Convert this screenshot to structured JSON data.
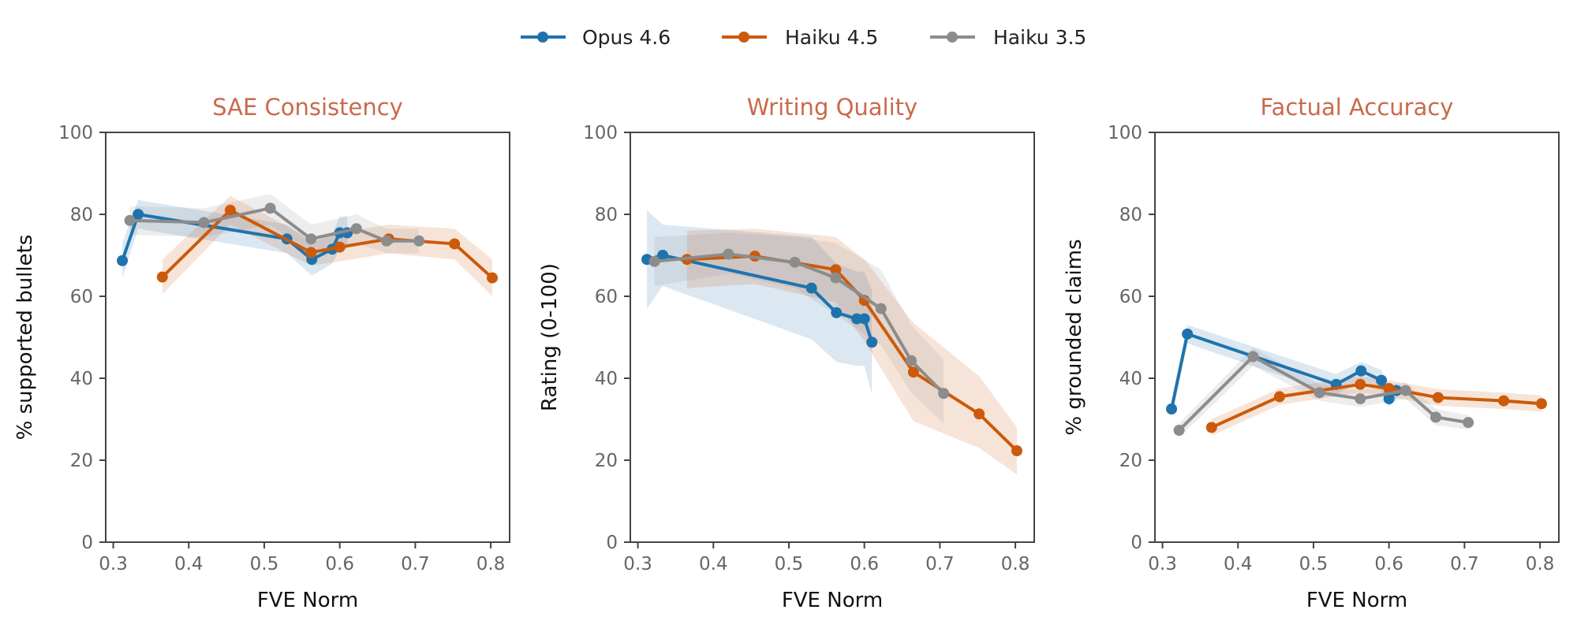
{
  "legend": {
    "items": [
      {
        "label": "Opus 4.6",
        "series": "opus46"
      },
      {
        "label": "Haiku 4.5",
        "series": "haiku45"
      },
      {
        "label": "Haiku 3.5",
        "series": "haiku35"
      }
    ]
  },
  "colors": {
    "opus46": "#1f73ad",
    "haiku45": "#cc5a0a",
    "haiku35": "#8c8c8c",
    "title": "#c96a4c",
    "axis": "#444444"
  },
  "chart_data": [
    {
      "type": "line",
      "title": "SAE Consistency",
      "xlabel": "FVE Norm",
      "ylabel": "% supported bullets",
      "xlim": [
        0.29,
        0.825
      ],
      "ylim": [
        0,
        100
      ],
      "xticks": [
        "0.3",
        "0.4",
        "0.5",
        "0.6",
        "0.7",
        "0.8"
      ],
      "yticks": [
        "0",
        "20",
        "40",
        "60",
        "80",
        "100"
      ],
      "grid": false,
      "series": [
        {
          "name": "Opus 4.6",
          "key": "opus46",
          "x": [
            0.312,
            0.333,
            0.53,
            0.563,
            0.59,
            0.6,
            0.61
          ],
          "y": [
            68.7,
            80.0,
            74.0,
            69.0,
            71.5,
            75.5,
            75.5
          ],
          "lower": [
            64.5,
            76.5,
            70.5,
            65.0,
            68.0,
            71.5,
            71.5
          ],
          "upper": [
            73.0,
            83.5,
            77.5,
            73.0,
            75.0,
            79.5,
            79.5
          ]
        },
        {
          "name": "Haiku 4.5",
          "key": "haiku45",
          "x": [
            0.365,
            0.455,
            0.562,
            0.6,
            0.665,
            0.752,
            0.802
          ],
          "y": [
            64.7,
            81.0,
            70.7,
            72.0,
            74.0,
            72.8,
            64.5
          ],
          "lower": [
            60.5,
            77.5,
            67.5,
            68.5,
            70.5,
            69.0,
            60.0
          ],
          "upper": [
            69.0,
            84.5,
            74.0,
            75.5,
            77.5,
            76.5,
            69.0
          ]
        },
        {
          "name": "Haiku 3.5",
          "key": "haiku35",
          "x": [
            0.322,
            0.42,
            0.508,
            0.562,
            0.622,
            0.662,
            0.705
          ],
          "y": [
            78.5,
            78.0,
            81.5,
            74.0,
            76.5,
            73.5,
            73.5
          ],
          "lower": [
            75.0,
            74.5,
            77.5,
            70.5,
            73.0,
            70.5,
            70.5
          ],
          "upper": [
            82.0,
            81.5,
            85.0,
            77.5,
            80.0,
            76.5,
            76.5
          ]
        }
      ]
    },
    {
      "type": "line",
      "title": "Writing Quality",
      "xlabel": "FVE Norm",
      "ylabel": "Rating (0-100)",
      "xlim": [
        0.29,
        0.825
      ],
      "ylim": [
        0,
        100
      ],
      "xticks": [
        "0.3",
        "0.4",
        "0.5",
        "0.6",
        "0.7",
        "0.8"
      ],
      "yticks": [
        "0",
        "20",
        "40",
        "60",
        "80",
        "100"
      ],
      "grid": false,
      "series": [
        {
          "name": "Opus 4.6",
          "key": "opus46",
          "x": [
            0.312,
            0.333,
            0.53,
            0.563,
            0.59,
            0.6,
            0.61
          ],
          "y": [
            69.0,
            70.0,
            62.0,
            56.0,
            54.5,
            54.5,
            48.8
          ],
          "lower": [
            57.0,
            62.5,
            49.5,
            44.0,
            43.0,
            43.0,
            36.0
          ],
          "upper": [
            81.0,
            77.5,
            74.5,
            68.0,
            66.0,
            66.0,
            61.5
          ]
        },
        {
          "name": "Haiku 4.5",
          "key": "haiku45",
          "x": [
            0.365,
            0.455,
            0.562,
            0.6,
            0.665,
            0.752,
            0.802
          ],
          "y": [
            69.0,
            69.8,
            66.5,
            59.0,
            41.5,
            31.3,
            22.3
          ],
          "lower": [
            62.0,
            63.0,
            58.5,
            49.0,
            29.5,
            23.0,
            16.5
          ],
          "upper": [
            76.0,
            76.5,
            74.5,
            69.0,
            53.5,
            40.5,
            28.0
          ]
        },
        {
          "name": "Haiku 3.5",
          "key": "haiku35",
          "x": [
            0.322,
            0.42,
            0.508,
            0.562,
            0.622,
            0.662,
            0.705
          ],
          "y": [
            68.5,
            70.3,
            68.3,
            64.5,
            57.0,
            44.3,
            36.3
          ],
          "lower": [
            62.5,
            65.5,
            62.0,
            55.5,
            48.0,
            36.5,
            29.0
          ],
          "upper": [
            74.5,
            75.5,
            74.5,
            73.0,
            66.5,
            53.0,
            44.5
          ]
        }
      ]
    },
    {
      "type": "line",
      "title": "Factual Accuracy",
      "xlabel": "FVE Norm",
      "ylabel": "% grounded claims",
      "xlim": [
        0.29,
        0.825
      ],
      "ylim": [
        0,
        100
      ],
      "xticks": [
        "0.3",
        "0.4",
        "0.5",
        "0.6",
        "0.7",
        "0.8"
      ],
      "yticks": [
        "0",
        "20",
        "40",
        "60",
        "80",
        "100"
      ],
      "grid": false,
      "series": [
        {
          "name": "Opus 4.6",
          "key": "opus46",
          "x": [
            0.312,
            0.333,
            0.53,
            0.563,
            0.59,
            0.6,
            0.61
          ],
          "y": [
            32.5,
            50.8,
            38.5,
            41.8,
            39.5,
            35.0,
            37.0
          ],
          "lower": [
            30.5,
            48.5,
            36.0,
            39.5,
            37.0,
            33.0,
            35.0
          ],
          "upper": [
            34.5,
            53.0,
            41.0,
            44.0,
            42.0,
            37.0,
            39.0
          ]
        },
        {
          "name": "Haiku 4.5",
          "key": "haiku45",
          "x": [
            0.365,
            0.455,
            0.562,
            0.6,
            0.665,
            0.752,
            0.802
          ],
          "y": [
            28.0,
            35.5,
            38.5,
            37.5,
            35.3,
            34.5,
            33.8
          ],
          "lower": [
            26.0,
            33.5,
            36.5,
            35.5,
            33.3,
            32.5,
            31.8
          ],
          "upper": [
            30.0,
            37.5,
            40.5,
            39.5,
            37.3,
            36.5,
            35.8
          ]
        },
        {
          "name": "Haiku 3.5",
          "key": "haiku35",
          "x": [
            0.322,
            0.42,
            0.508,
            0.562,
            0.622,
            0.662,
            0.705
          ],
          "y": [
            27.3,
            45.3,
            36.5,
            35.0,
            37.0,
            30.5,
            29.2
          ],
          "lower": [
            25.5,
            43.0,
            34.5,
            33.0,
            35.0,
            28.5,
            27.5
          ],
          "upper": [
            29.0,
            47.5,
            38.5,
            37.0,
            39.0,
            32.5,
            31.0
          ]
        }
      ]
    }
  ]
}
